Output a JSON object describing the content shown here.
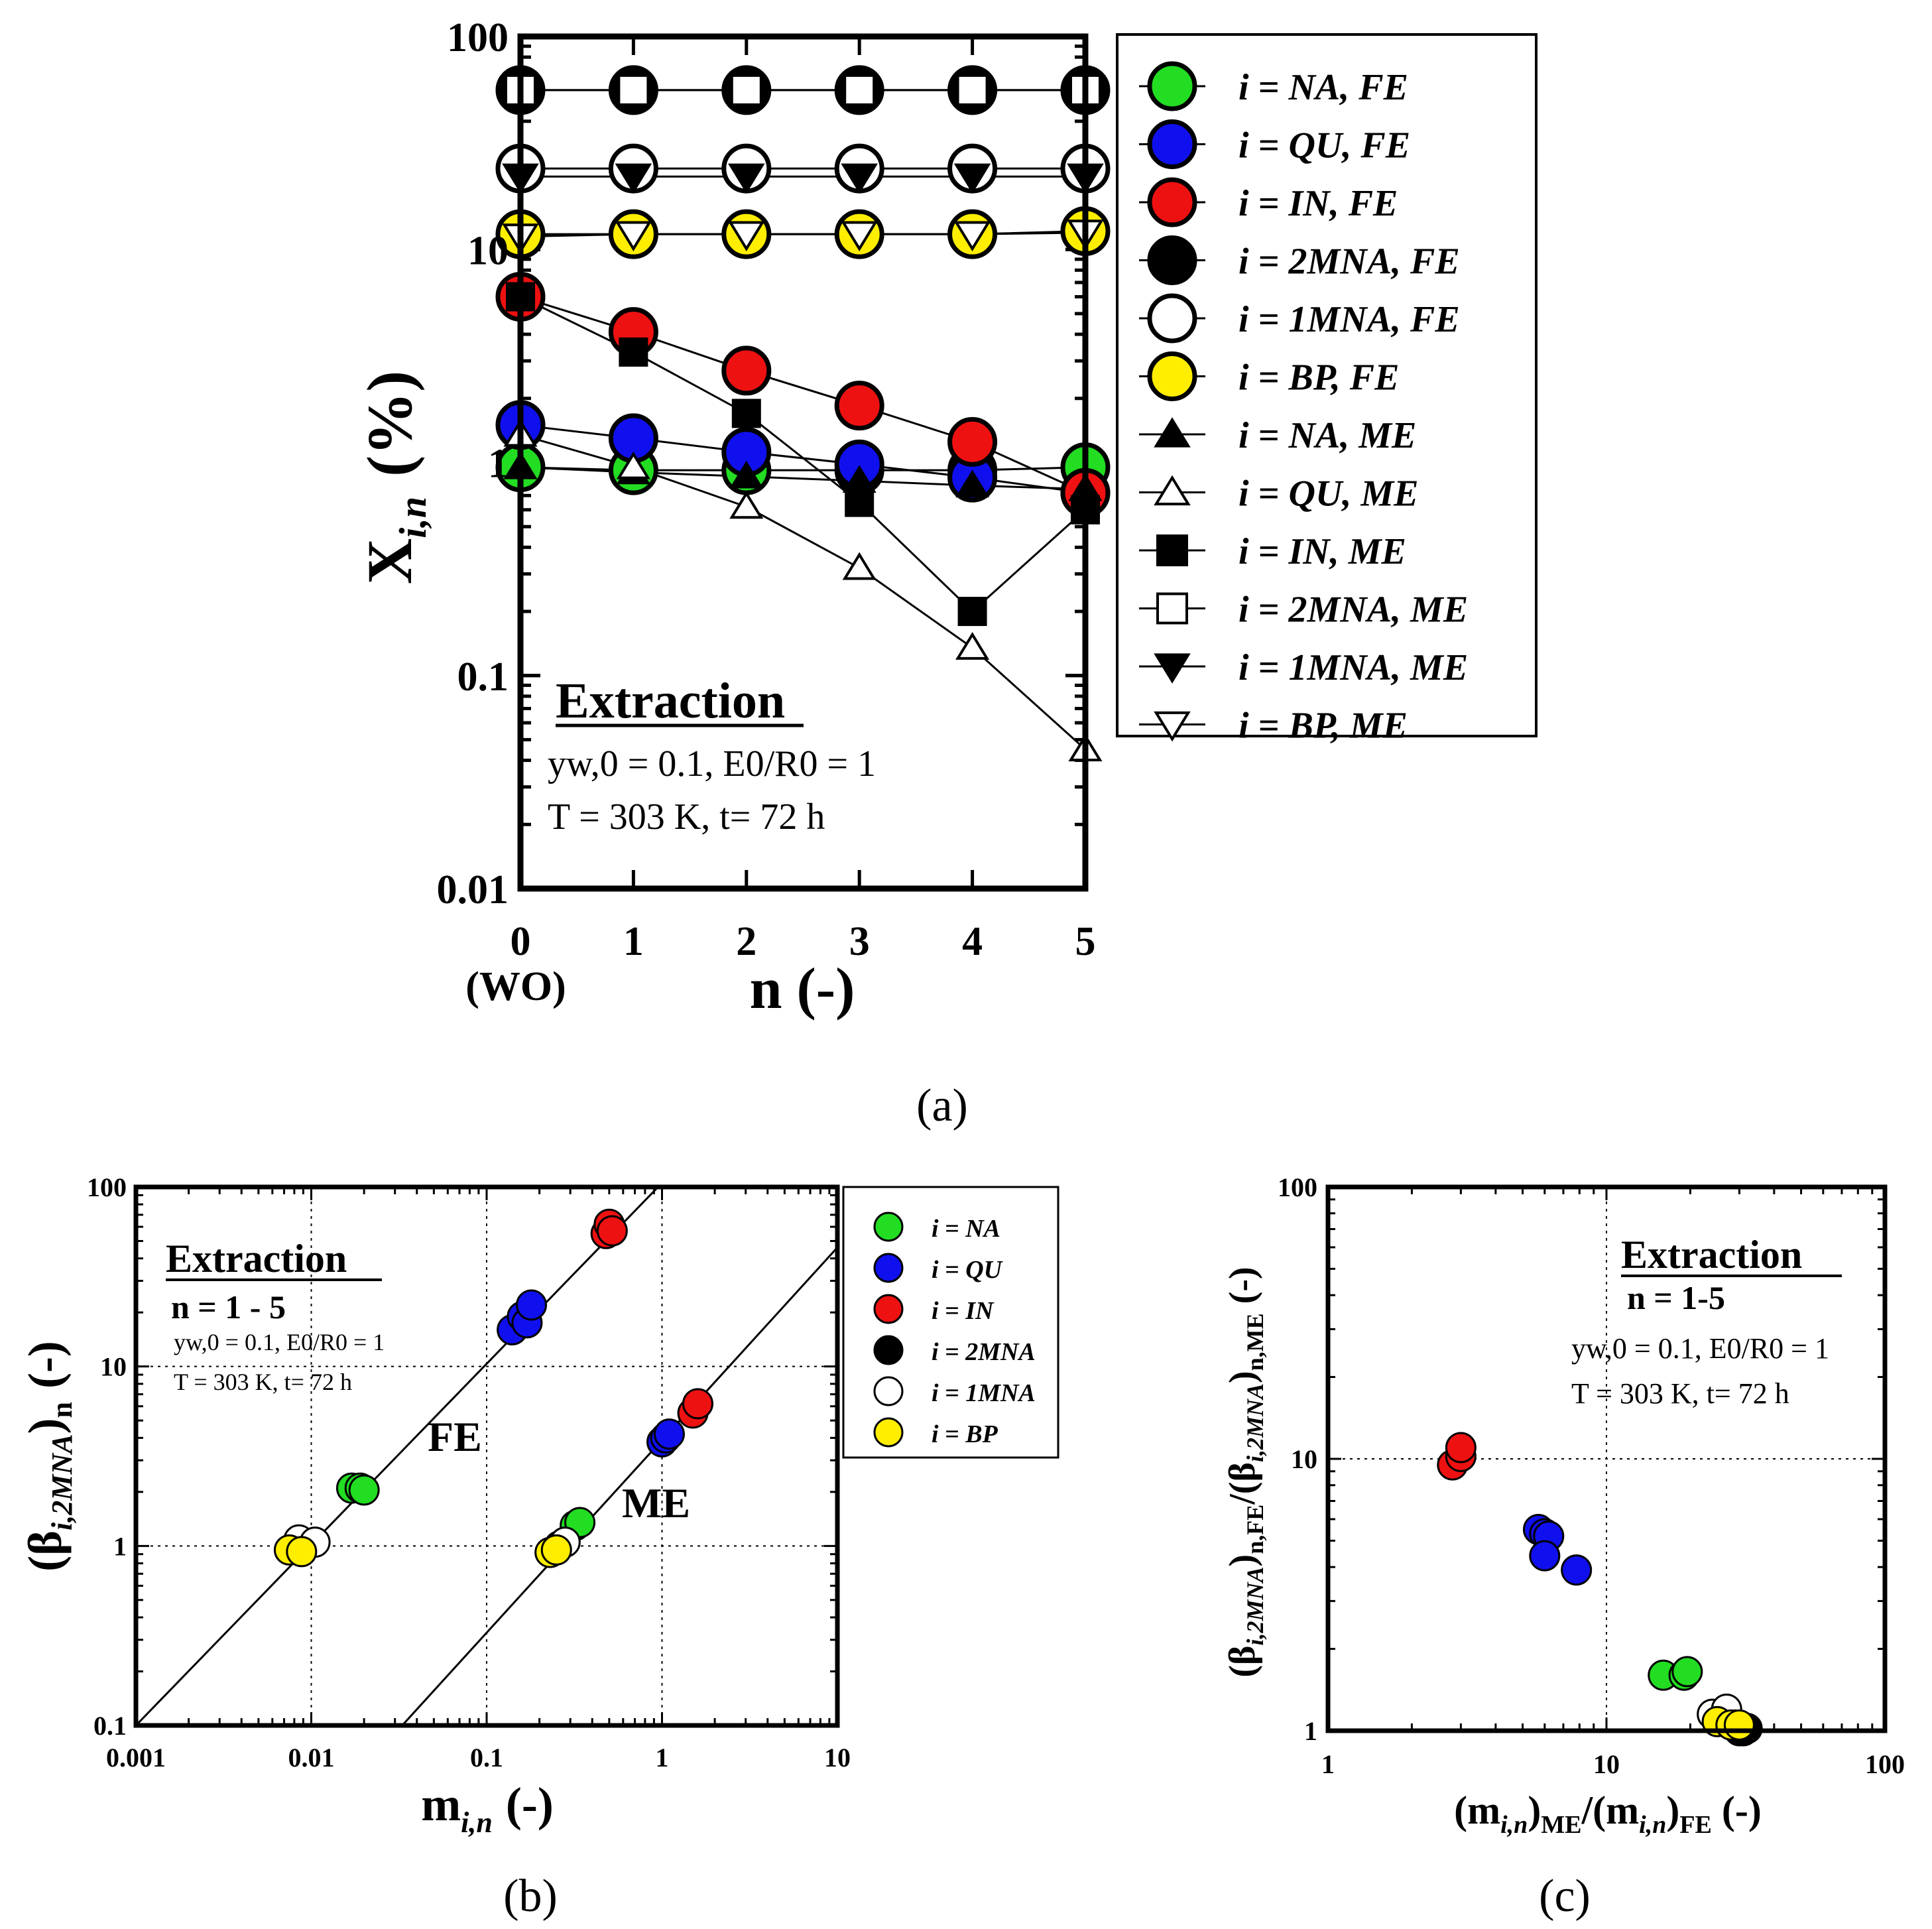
{
  "colors": {
    "NA": "#22dd22",
    "QU": "#1010ee",
    "IN": "#ee1111",
    "2MNA": "#000000",
    "1MNA": "#ffffff",
    "BP": "#ffee00"
  },
  "panel_a": {
    "caption": "(a)",
    "x_ticks": [
      "0",
      "1",
      "2",
      "3",
      "4",
      "5"
    ],
    "x_extra": "(WO)",
    "x_label": "n (-)",
    "y_label_main": "X",
    "y_label_sub": "i,n",
    "y_label_unit": "(%)",
    "y_ticks": [
      "0.01",
      "0.1",
      "1",
      "10",
      "100"
    ],
    "box_title": "Extraction",
    "cond_line1": "yw,0 = 0.1, E0/R0 = 1",
    "cond_line2": "T = 303 K, t= 72 h",
    "legend": [
      "i = NA, FE",
      "i = QU, FE",
      "i = IN, FE",
      "i = 2MNA, FE",
      "i = 1MNA, FE",
      "i = BP, FE",
      "i = NA, ME",
      "i = QU, ME",
      "i = IN, ME",
      "i = 2MNA, ME",
      "i = 1MNA, ME",
      "i = BP, ME"
    ]
  },
  "panel_b": {
    "caption": "(b)",
    "x_ticks": [
      "0.001",
      "0.01",
      "0.1",
      "1",
      "10"
    ],
    "y_ticks": [
      "0.1",
      "1",
      "10",
      "100"
    ],
    "x_label": "m",
    "x_label_sub": "i,n",
    "x_label_unit": "(-)",
    "y_label": "(β",
    "y_label_sub": "i,2MNA",
    "y_label_close": ")",
    "y_label_sub2": "n",
    "y_label_unit": "(-)",
    "box_title": "Extraction",
    "box_n": "n = 1 - 5",
    "cond_line1": "yw,0 = 0.1, E0/R0 = 1",
    "cond_line2": "T = 303 K, t= 72 h",
    "label_fe": "FE",
    "label_me": "ME",
    "legend": [
      "i = NA",
      "i = QU",
      "i = IN",
      "i = 2MNA",
      "i = 1MNA",
      "i = BP"
    ]
  },
  "panel_c": {
    "caption": "(c)",
    "x_ticks": [
      "1",
      "10",
      "100"
    ],
    "y_ticks": [
      "1",
      "10",
      "100"
    ],
    "x_label": "(m",
    "x_label_sub": "i,n",
    "x_label_mid": ")",
    "x_label_sub2": "ME",
    "x_label_mid2": "/(m",
    "x_label_sub3": "i,n",
    "x_label_mid3": ")",
    "x_label_sub4": "FE",
    "x_label_unit": " (-)",
    "y_label": "(β",
    "y_label_sub": "i,2MNA",
    "y_label_mid": ")",
    "y_label_sub2": "n,FE",
    "y_label_mid2": "/(β",
    "y_label_sub3": "i,2MNA",
    "y_label_mid3": ")",
    "y_label_sub4": "n,ME",
    "y_label_unit": " (-)",
    "box_title": "Extraction",
    "box_n": "n = 1-5",
    "cond_line1": "yw,0 = 0.1, E0/R0 = 1",
    "cond_line2": "T = 303 K, t= 72 h"
  },
  "chart_data": [
    {
      "type": "scatter",
      "panel": "a",
      "xlabel": "n (-)",
      "ylabel": "Xi,n (%)",
      "yscale": "log",
      "xlim": [
        0,
        5
      ],
      "ylim": [
        0.01,
        100
      ],
      "x": [
        0,
        1,
        2,
        3,
        4,
        5
      ],
      "series": [
        {
          "name": "i = NA, FE",
          "species": "NA",
          "group": "FE",
          "values": [
            0.95,
            0.92,
            0.92,
            0.92,
            0.92,
            0.95
          ]
        },
        {
          "name": "i = QU, FE",
          "species": "QU",
          "group": "FE",
          "values": [
            1.5,
            1.3,
            1.12,
            0.98,
            0.85,
            0.72
          ]
        },
        {
          "name": "i = IN, FE",
          "species": "IN",
          "group": "FE",
          "values": [
            6.0,
            4.1,
            2.7,
            1.85,
            1.25,
            0.72
          ]
        },
        {
          "name": "i = 2MNA, FE",
          "species": "2MNA",
          "group": "FE",
          "values": [
            56,
            56,
            56,
            56,
            56,
            56
          ]
        },
        {
          "name": "i = 1MNA, FE",
          "species": "1MNA",
          "group": "FE",
          "values": [
            24,
            24,
            24,
            24,
            24,
            24
          ]
        },
        {
          "name": "i = BP, FE",
          "species": "BP",
          "group": "FE",
          "values": [
            11.8,
            11.8,
            11.8,
            11.8,
            11.8,
            12.2
          ]
        },
        {
          "name": "i = NA, ME",
          "species": "NA",
          "group": "ME",
          "values": [
            0.95,
            0.9,
            0.86,
            0.82,
            0.78,
            0.75
          ]
        },
        {
          "name": "i = QU, ME",
          "species": "QU",
          "group": "ME",
          "values": [
            1.35,
            0.95,
            0.62,
            0.32,
            0.135,
            0.045
          ]
        },
        {
          "name": "i = IN, ME",
          "species": "IN",
          "group": "ME",
          "values": [
            6.0,
            3.3,
            1.7,
            0.65,
            0.2,
            0.6
          ]
        },
        {
          "name": "i = 2MNA, ME",
          "species": "2MNA",
          "group": "ME",
          "values": [
            56,
            56,
            56,
            56,
            56,
            56
          ]
        },
        {
          "name": "i = 1MNA, ME",
          "species": "1MNA",
          "group": "ME",
          "values": [
            22,
            22,
            22,
            22,
            22,
            22
          ]
        },
        {
          "name": "i = BP, ME",
          "species": "BP",
          "group": "ME",
          "values": [
            11.5,
            11.8,
            11.8,
            11.8,
            11.8,
            12.0
          ]
        }
      ]
    },
    {
      "type": "scatter",
      "panel": "b",
      "xlabel": "mi,n (-)",
      "ylabel": "(βi,2MNA)n (-)",
      "xscale": "log",
      "yscale": "log",
      "xlim": [
        0.001,
        10
      ],
      "ylim": [
        0.1,
        100
      ],
      "grid": "dotted at decades",
      "fit_lines": [
        {
          "name": "FE",
          "points": [
            [
              0.001,
              0.1
            ],
            [
              0.95,
              100
            ]
          ]
        },
        {
          "name": "ME",
          "points": [
            [
              0.033,
              0.1
            ],
            [
              10,
              46
            ]
          ]
        }
      ],
      "series": [
        {
          "name": "i = NA",
          "species": "NA",
          "points": [
            [
              0.017,
              2.1
            ],
            [
              0.019,
              2.1
            ],
            [
              0.02,
              2.05
            ],
            [
              0.32,
              1.3
            ],
            [
              0.34,
              1.35
            ]
          ]
        },
        {
          "name": "i = QU",
          "species": "QU",
          "points": [
            [
              0.14,
              16
            ],
            [
              0.16,
              19
            ],
            [
              0.17,
              17.5
            ],
            [
              0.18,
              22
            ],
            [
              1.0,
              3.8
            ],
            [
              1.05,
              4.0
            ],
            [
              1.1,
              4.2
            ]
          ]
        },
        {
          "name": "i = IN",
          "species": "IN",
          "points": [
            [
              0.48,
              55
            ],
            [
              0.5,
              62
            ],
            [
              0.52,
              57
            ],
            [
              1.5,
              5.5
            ],
            [
              1.6,
              6.2
            ]
          ]
        },
        {
          "name": "i = 2MNA",
          "species": "2MNA",
          "points": [
            [
              0.0085,
              1.0
            ],
            [
              0.26,
              1.0
            ]
          ]
        },
        {
          "name": "i = 1MNA",
          "species": "1MNA",
          "points": [
            [
              0.0085,
              1.08
            ],
            [
              0.0105,
              1.05
            ],
            [
              0.28,
              1.05
            ]
          ]
        },
        {
          "name": "i = BP",
          "species": "BP",
          "points": [
            [
              0.0075,
              0.95
            ],
            [
              0.0088,
              0.93
            ],
            [
              0.23,
              0.92
            ],
            [
              0.25,
              0.95
            ]
          ]
        }
      ]
    },
    {
      "type": "scatter",
      "panel": "c",
      "xlabel": "(mi,n)ME/(mi,n)FE (-)",
      "ylabel": "(βi,2MNA)n,FE/(βi,2MNA)n,ME (-)",
      "xscale": "log",
      "yscale": "log",
      "xlim": [
        1,
        100
      ],
      "ylim": [
        1,
        100
      ],
      "grid": "dotted at 10",
      "series": [
        {
          "name": "i = NA",
          "species": "NA",
          "points": [
            [
              16,
              1.6
            ],
            [
              19,
              1.6
            ],
            [
              19.5,
              1.65
            ]
          ]
        },
        {
          "name": "i = QU",
          "species": "QU",
          "points": [
            [
              5.7,
              5.5
            ],
            [
              6.0,
              5.3
            ],
            [
              6.2,
              5.2
            ],
            [
              6.0,
              4.4
            ],
            [
              7.8,
              3.9
            ]
          ]
        },
        {
          "name": "i = IN",
          "species": "IN",
          "points": [
            [
              2.8,
              9.5
            ],
            [
              3.0,
              10.2
            ],
            [
              3.0,
              11.0
            ]
          ]
        },
        {
          "name": "i = 2MNA",
          "species": "2MNA",
          "points": [
            [
              30,
              1.0
            ],
            [
              31,
              1.0
            ],
            [
              32,
              1.02
            ]
          ]
        },
        {
          "name": "i = 1MNA",
          "species": "1MNA",
          "points": [
            [
              24,
              1.15
            ],
            [
              27,
              1.2
            ],
            [
              29,
              1.05
            ]
          ]
        },
        {
          "name": "i = BP",
          "species": "BP",
          "points": [
            [
              25,
              1.08
            ],
            [
              28,
              1.05
            ],
            [
              30,
              1.05
            ]
          ]
        }
      ]
    }
  ]
}
